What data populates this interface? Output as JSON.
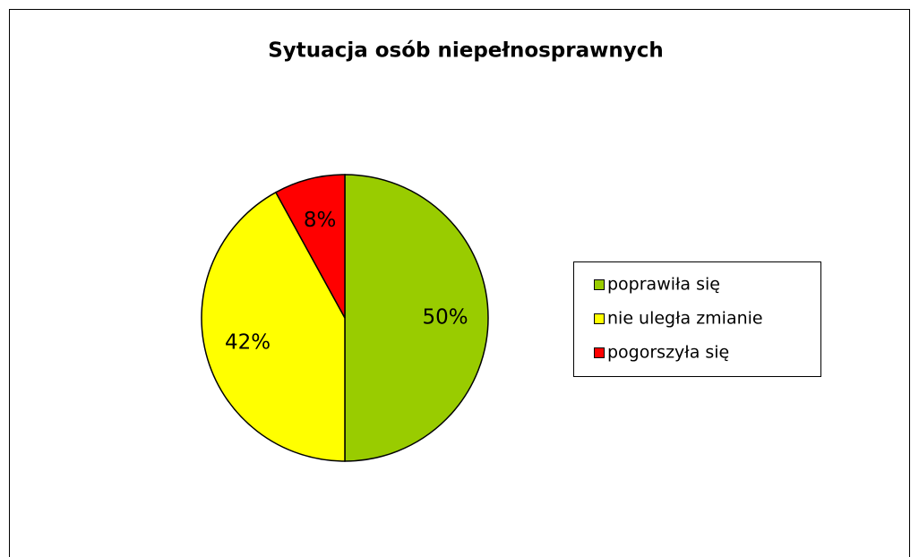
{
  "chart_data": {
    "type": "pie",
    "title": "Sytuacja osób niepełnosprawnych",
    "categories": [
      "poprawiła się",
      "nie uległa zmianie",
      "pogorszyła się"
    ],
    "values": [
      50,
      42,
      8
    ],
    "value_labels": [
      "50%",
      "42%",
      "8%"
    ],
    "colors": [
      "#99cc00",
      "#ffff00",
      "#ff0000"
    ],
    "legend": "right"
  }
}
